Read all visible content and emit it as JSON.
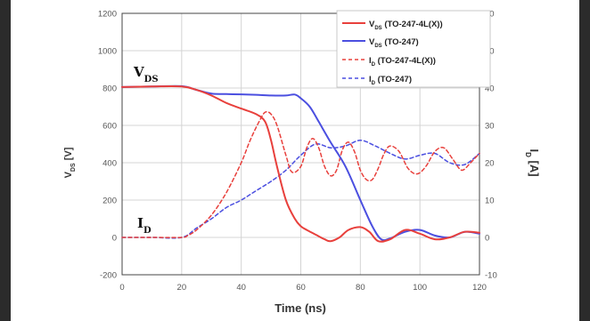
{
  "chart_data": {
    "type": "line",
    "xlabel": "Time (ns)",
    "ylabel_left": "V",
    "ylabel_left_sub": "DS",
    "ylabel_left_unit": " [V]",
    "ylabel_right": "I",
    "ylabel_right_sub": "D",
    "ylabel_right_unit": " [A]",
    "xlim": [
      0,
      120
    ],
    "ylim_left": [
      -200,
      1200
    ],
    "ylim_right": [
      -10,
      60
    ],
    "x_ticks": [
      "0",
      "20",
      "40",
      "60",
      "80",
      "100",
      "120"
    ],
    "y_left_ticks": [
      "-200",
      "0",
      "200",
      "400",
      "600",
      "800",
      "1000",
      "1200"
    ],
    "y_right_ticks": [
      "-10",
      "0",
      "10",
      "20",
      "30",
      "40",
      "50",
      "60"
    ],
    "annotations": [
      {
        "main": "V",
        "sub": "DS"
      },
      {
        "main": "I",
        "sub": "D"
      }
    ],
    "grid": true,
    "legend_position": "top-right",
    "series": [
      {
        "name_main": "V",
        "name_sub": "DS",
        "name_rest": " (TO-247-4L(X))",
        "axis": "left",
        "color": "#e8403c",
        "style": "solid",
        "x": [
          0,
          10,
          20,
          25,
          30,
          35,
          40,
          45,
          48,
          50,
          52,
          55,
          58,
          60,
          62,
          65,
          68,
          70,
          73,
          76,
          80,
          83,
          86,
          90,
          95,
          100,
          105,
          110,
          115,
          120
        ],
        "y": [
          805,
          808,
          808,
          790,
          760,
          720,
          690,
          660,
          620,
          520,
          380,
          200,
          100,
          60,
          40,
          15,
          -10,
          -20,
          0,
          40,
          55,
          30,
          -20,
          -10,
          40,
          20,
          -10,
          0,
          30,
          25
        ]
      },
      {
        "name_main": "V",
        "name_sub": "DS",
        "name_rest": " (TO-247)",
        "axis": "left",
        "color": "#4b4fe0",
        "style": "solid",
        "x": [
          0,
          10,
          20,
          25,
          30,
          35,
          40,
          45,
          50,
          55,
          58,
          60,
          63,
          66,
          70,
          75,
          80,
          84,
          87,
          90,
          95,
          100,
          105,
          110,
          115,
          120
        ],
        "y": [
          805,
          808,
          810,
          790,
          770,
          768,
          766,
          764,
          760,
          760,
          765,
          745,
          700,
          620,
          510,
          380,
          200,
          60,
          -10,
          -5,
          30,
          40,
          10,
          0,
          30,
          20
        ]
      },
      {
        "name_main": "I",
        "name_sub": "D",
        "name_rest": " (TO-247-4L(X))",
        "axis": "right",
        "color": "#e8403c",
        "style": "dashed",
        "x": [
          0,
          10,
          20,
          22,
          25,
          30,
          35,
          40,
          43,
          46,
          48,
          50,
          52,
          55,
          57,
          60,
          62,
          64,
          66,
          68,
          70,
          72,
          74,
          76,
          78,
          80,
          82,
          84,
          86,
          88,
          90,
          93,
          96,
          99,
          102,
          105,
          108,
          111,
          114,
          117,
          120
        ],
        "y": [
          0,
          0,
          0,
          0.5,
          2,
          6,
          12,
          20,
          26,
          31,
          33.5,
          33,
          30,
          22,
          17.5,
          19,
          24,
          26.5,
          24,
          19,
          16.5,
          18,
          23.5,
          25.5,
          23,
          18,
          15.5,
          15.5,
          18.5,
          22.5,
          24.5,
          23,
          18.5,
          17,
          19,
          23,
          24,
          21,
          18,
          20,
          22.5
        ]
      },
      {
        "name_main": "I",
        "name_sub": "D",
        "name_rest": " (TO-247)",
        "axis": "right",
        "color": "#4b4fe0",
        "style": "dashed",
        "x": [
          0,
          10,
          20,
          25,
          30,
          35,
          40,
          45,
          50,
          55,
          60,
          65,
          70,
          75,
          80,
          85,
          90,
          95,
          100,
          105,
          110,
          115,
          120
        ],
        "y": [
          0,
          0,
          0,
          2.5,
          5,
          8,
          10,
          12.5,
          15,
          18,
          22,
          25,
          24,
          24.5,
          26,
          24.5,
          22.5,
          21,
          22,
          22.5,
          20,
          19.5,
          22.5
        ]
      }
    ]
  }
}
